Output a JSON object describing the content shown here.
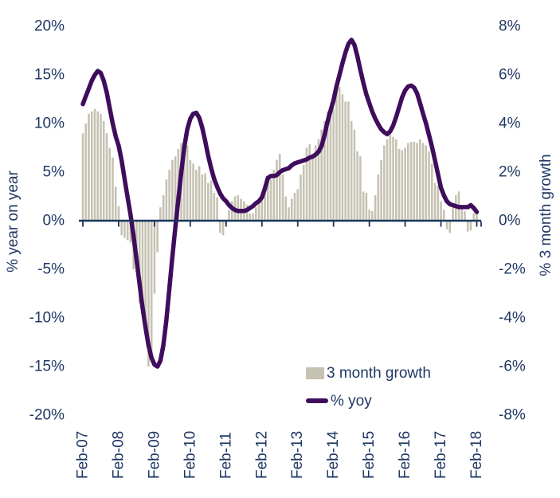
{
  "figure": {
    "left_axis": {
      "title": "% year on year",
      "tick_labels": [
        "20%",
        "15%",
        "10%",
        "5%",
        "0%",
        "-5%",
        "-10%",
        "-15%",
        "-20%"
      ]
    },
    "right_axis": {
      "title": "% 3 month growth",
      "tick_labels": [
        "8%",
        "6%",
        "4%",
        "2%",
        "0%",
        "-2%",
        "-4%",
        "-6%",
        "-8%"
      ]
    },
    "x_axis": {
      "tick_labels": [
        "Feb-07",
        "Feb-08",
        "Feb-09",
        "Feb-10",
        "Feb-11",
        "Feb-12",
        "Feb-13",
        "Feb-14",
        "Feb-15",
        "Feb-16",
        "Feb-17",
        "Feb-18"
      ]
    },
    "legend": [
      {
        "label": "3 month growth",
        "type": "bar"
      },
      {
        "label": "% yoy",
        "type": "line"
      }
    ],
    "colors": {
      "bar": "#c6c2b3",
      "line": "#3f0d5c",
      "text": "#1f3864",
      "axis": "#1b365d"
    }
  },
  "chart_data": {
    "type": "combo",
    "x_start": "Feb-07",
    "x_end": "Feb-18",
    "x_frequency": "monthly",
    "x_tick_labels": [
      "Feb-07",
      "Feb-08",
      "Feb-09",
      "Feb-10",
      "Feb-11",
      "Feb-12",
      "Feb-13",
      "Feb-14",
      "Feb-15",
      "Feb-16",
      "Feb-17",
      "Feb-18"
    ],
    "left_axis_range": [
      -20,
      20
    ],
    "right_axis_range": [
      -8,
      8
    ],
    "grid": false,
    "legend_position": "inside-bottom-right",
    "series": [
      {
        "name": "3 month growth",
        "type": "bar",
        "axis": "right",
        "values": [
          3.6,
          4.0,
          4.4,
          4.5,
          4.6,
          4.5,
          4.4,
          4.1,
          3.6,
          3.0,
          2.6,
          1.4,
          0.6,
          -0.6,
          -0.7,
          -0.8,
          -0.9,
          -2.0,
          -2.1,
          -3.4,
          -3.9,
          -4.6,
          -6.0,
          -5.8,
          -3.0,
          -1.3,
          0.55,
          1.05,
          1.7,
          2.1,
          2.5,
          2.65,
          2.95,
          3.2,
          3.3,
          3.1,
          2.5,
          2.35,
          2.1,
          2.25,
          1.9,
          1.95,
          1.55,
          1.65,
          1.15,
          0.95,
          -0.5,
          -0.6,
          -0.15,
          0.45,
          0.8,
          1.0,
          1.05,
          0.9,
          0.8,
          0.65,
          0.3,
          0.3,
          0.55,
          0.8,
          0.9,
          1.3,
          1.65,
          1.7,
          2.1,
          2.5,
          2.75,
          1.9,
          1.0,
          0.55,
          0.9,
          1.15,
          1.3,
          1.9,
          2.3,
          3.0,
          3.15,
          2.75,
          3.1,
          3.35,
          3.75,
          4.1,
          4.5,
          4.55,
          4.6,
          5.4,
          5.5,
          5.2,
          4.9,
          4.9,
          4.1,
          3.75,
          2.85,
          2.65,
          1.2,
          1.15,
          0.45,
          0.4,
          1.05,
          1.9,
          2.5,
          3.1,
          3.35,
          3.55,
          3.45,
          3.35,
          2.95,
          2.9,
          3.0,
          3.2,
          3.25,
          3.25,
          3.2,
          3.35,
          3.2,
          3.1,
          2.85,
          2.35,
          1.55,
          1.45,
          0.8,
          0.45,
          -0.35,
          -0.5,
          0.65,
          1.05,
          1.2,
          0.5,
          0.4,
          -0.45,
          -0.4,
          0.3,
          0.45
        ]
      },
      {
        "name": "% yoy",
        "type": "line",
        "axis": "left",
        "values": [
          12.0,
          12.8,
          13.6,
          14.4,
          15.0,
          15.4,
          15.2,
          14.4,
          13.2,
          11.6,
          10.0,
          8.7,
          7.7,
          6.2,
          4.3,
          2.4,
          0.6,
          -1.6,
          -4.0,
          -6.5,
          -8.9,
          -11.0,
          -12.8,
          -14.1,
          -14.8,
          -15.0,
          -14.4,
          -12.8,
          -10.2,
          -7.0,
          -3.7,
          -0.7,
          2.2,
          5.0,
          7.6,
          9.4,
          10.5,
          11.0,
          11.1,
          10.6,
          9.6,
          8.2,
          6.7,
          5.4,
          4.3,
          3.5,
          2.8,
          2.3,
          2.0,
          1.6,
          1.3,
          1.1,
          1.0,
          1.0,
          1.0,
          1.1,
          1.3,
          1.5,
          1.8,
          2.0,
          2.4,
          3.3,
          4.4,
          4.6,
          4.6,
          4.7,
          5.0,
          5.2,
          5.3,
          5.4,
          5.7,
          5.9,
          6.0,
          6.1,
          6.2,
          6.3,
          6.5,
          6.6,
          6.8,
          7.1,
          7.7,
          8.8,
          10.2,
          11.3,
          12.4,
          13.8,
          15.0,
          16.2,
          17.3,
          18.2,
          18.6,
          18.1,
          16.9,
          15.5,
          14.2,
          13.0,
          12.1,
          11.2,
          10.5,
          9.9,
          9.4,
          9.1,
          8.9,
          9.2,
          9.8,
          10.7,
          11.7,
          12.7,
          13.4,
          13.8,
          13.9,
          13.7,
          13.1,
          12.1,
          11.0,
          10.0,
          8.8,
          7.6,
          6.2,
          4.8,
          3.4,
          2.6,
          2.0,
          1.7,
          1.6,
          1.5,
          1.4,
          1.4,
          1.4,
          1.4,
          1.6,
          1.3,
          0.9
        ]
      }
    ]
  }
}
